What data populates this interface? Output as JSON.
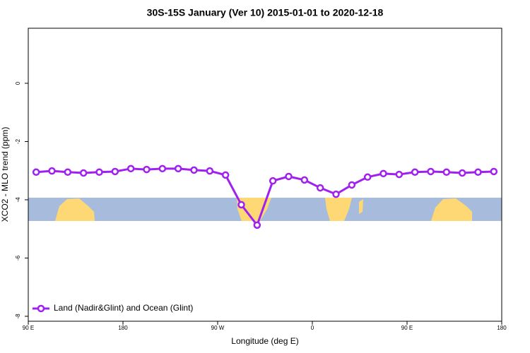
{
  "chart_data": {
    "type": "line",
    "title": "30S-15S January (Ver 10)   2015-01-01 to 2020-12-18",
    "x_label": "Longitude (deg E)",
    "y_label": "XCO2 - MLO trend (ppm)",
    "x": [
      97.5,
      112.5,
      127.5,
      142.5,
      157.5,
      172.5,
      187.5,
      202.5,
      217.5,
      232.5,
      247.5,
      262.5,
      277.5,
      292.5,
      307.5,
      322.5,
      337.5,
      352.5,
      367.5,
      382.5,
      397.5,
      412.5,
      427.5,
      442.5,
      457.5,
      472.5,
      487.5,
      502.5,
      517.5,
      532.5
    ],
    "series": [
      {
        "name": "Land (Nadir&Glint) and Ocean (Glint)",
        "color": "#a020f0",
        "values": [
          -3.05,
          -3.01,
          -3.05,
          -3.08,
          -3.05,
          -3.03,
          -2.93,
          -2.96,
          -2.93,
          -2.93,
          -2.98,
          -3.01,
          -3.15,
          -4.17,
          -4.87,
          -3.35,
          -3.2,
          -3.32,
          -3.59,
          -3.81,
          -3.49,
          -3.22,
          -3.1,
          -3.13,
          -3.05,
          -3.03,
          -3.05,
          -3.08,
          -3.05,
          -3.03
        ]
      }
    ],
    "xlim": [
      90,
      540
    ],
    "xticks": [
      {
        "value": 90,
        "label": "90 E"
      },
      180,
      {
        "value": 270,
        "label": "90 W"
      },
      {
        "value": 360,
        "label": "0"
      },
      {
        "value": 450,
        "label": "90 E"
      },
      {
        "value": 540,
        "label": "180"
      }
    ],
    "ylim": [
      -8.17,
      1.89
    ],
    "yticks": [
      0,
      -2,
      -4,
      -6,
      -8
    ],
    "legend": "bottom-left"
  }
}
